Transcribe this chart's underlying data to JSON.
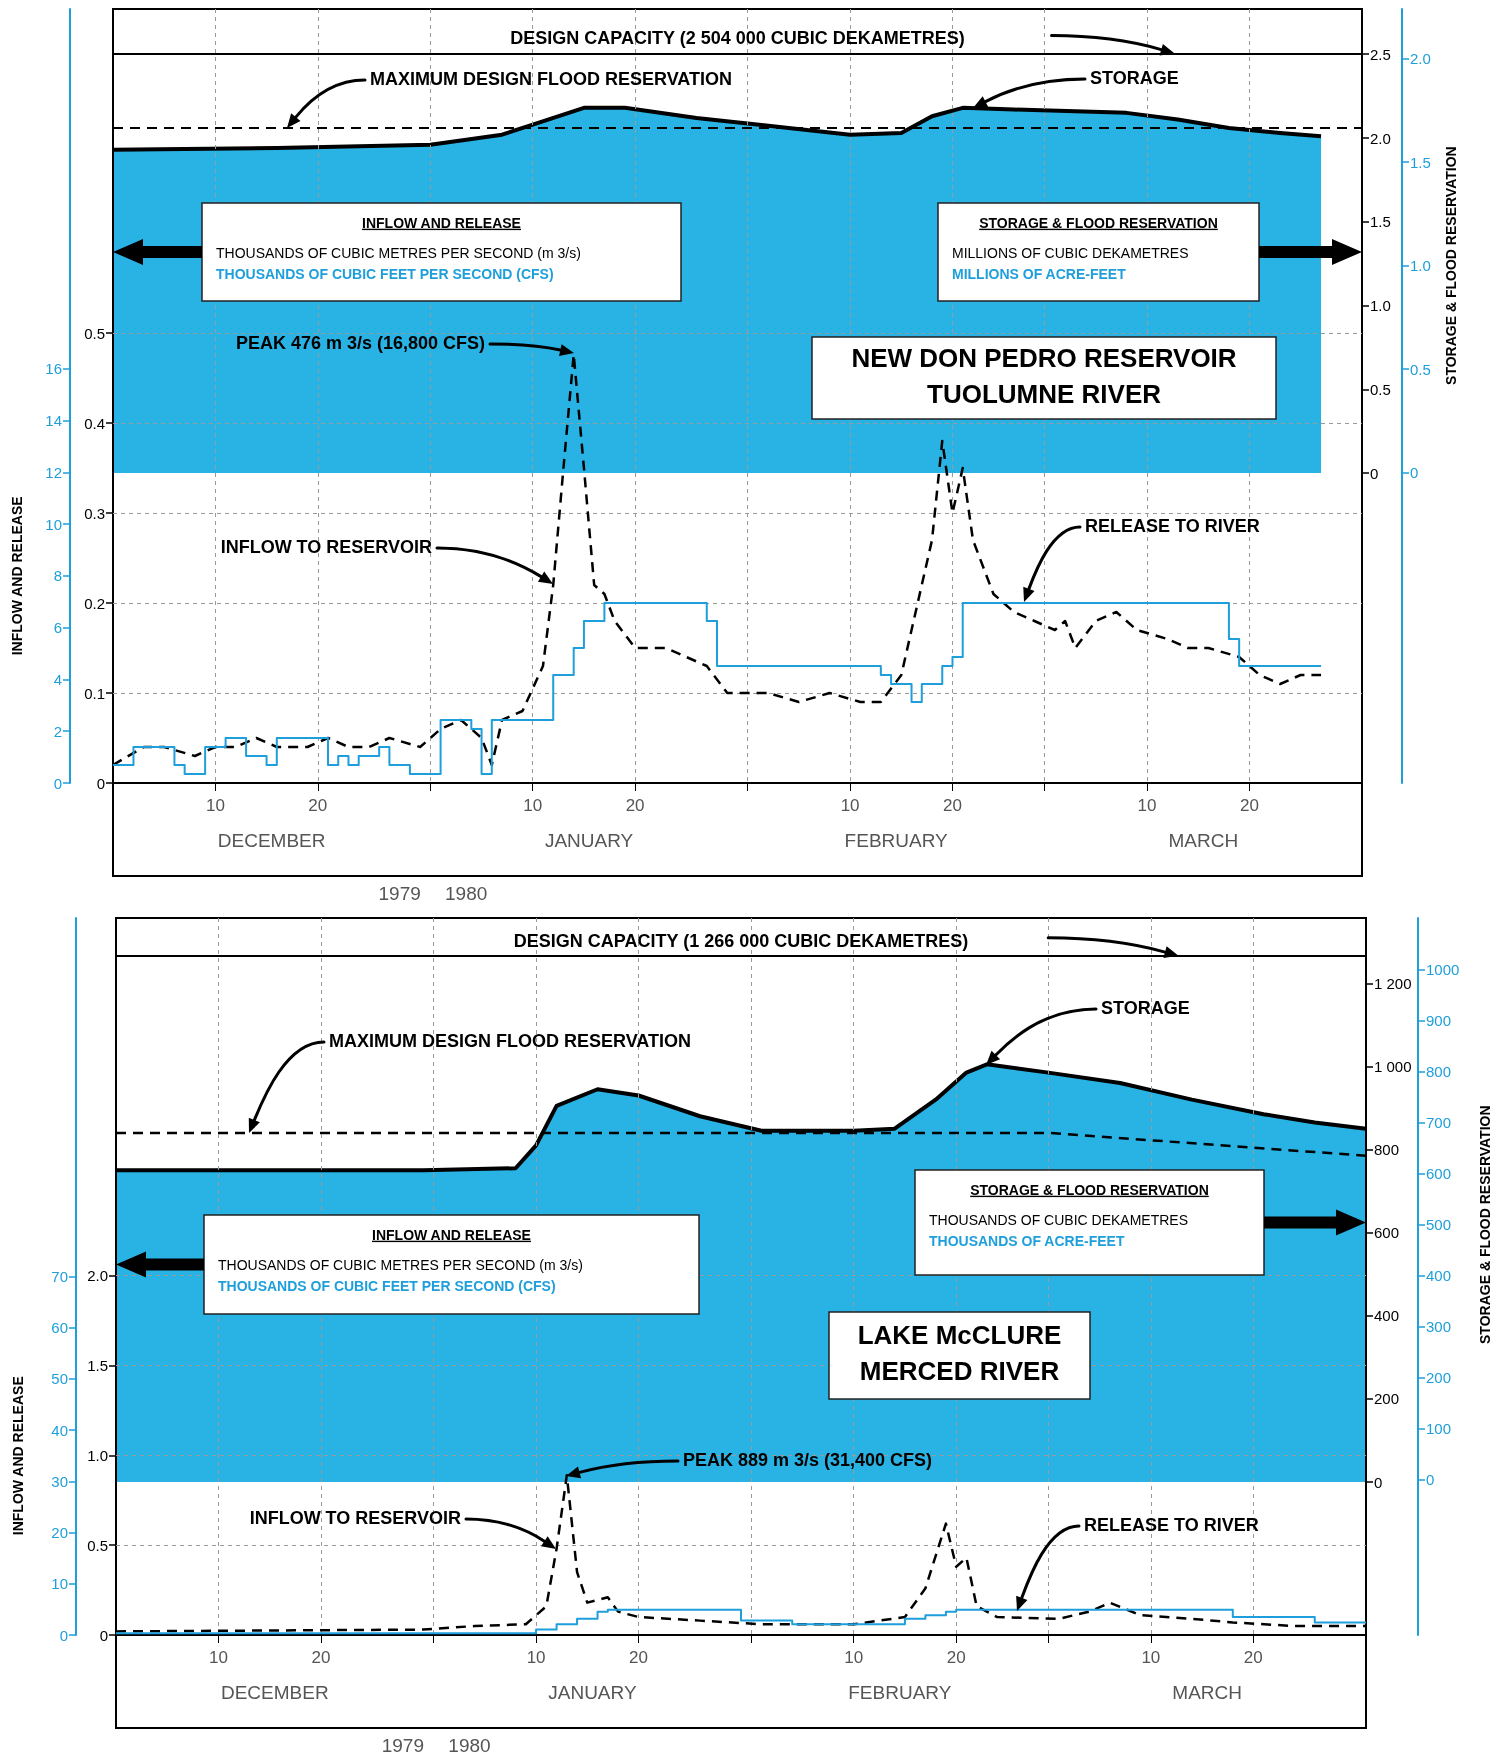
{
  "chart_data": [
    {
      "type": "area",
      "title": "NEW DON PEDRO RESERVOIR\nTUOLUMNE RIVER",
      "y2label": "STORAGE & FLOOD RESERVATION",
      "xlim": [
        "1979-11-30",
        "1980-03-31"
      ],
      "tick_labels": "y",
      "ylim": [
        -1.85,
        2.77
      ],
      "yticks": [
        0,
        0.5,
        {
          "value": 1,
          "label": "1.0"
        },
        1.5,
        {
          "value": 2,
          "label": "2.0"
        },
        2.5
      ],
      "y2lim": [
        -1.5,
        2.24
      ],
      "y2ticks": [
        0,
        0.5,
        {
          "value": 1,
          "label": "1.0"
        },
        1.5,
        {
          "value": 2,
          "label": "2.0"
        }
      ],
      "marker": "none",
      "series": [
        {
          "color": "#29b3e4",
          "x": [
            "1979-11-30",
            "1979-12-16",
            "1979-12-31",
            "1980-01-07",
            "1980-01-10",
            "1980-01-15",
            "1980-01-19",
            "1980-01-26",
            "1980-02-04",
            "1980-02-10",
            "1980-02-15",
            "1980-02-18",
            "1980-02-21",
            "1980-02-26",
            "1980-03-08",
            "1980-03-13",
            "1980-03-18",
            "1980-03-23",
            "1980-03-27"
          ],
          "values": [
            1.93,
            1.94,
            1.96,
            2.02,
            2.08,
            2.18,
            2.18,
            2.12,
            2.06,
            2.02,
            2.03,
            2.13,
            2.18,
            2.17,
            2.15,
            2.11,
            2.06,
            2.03,
            2.01
          ]
        }
      ],
      "ref_lines": [
        {
          "axis": "y",
          "value": 2.504,
          "label": "DESIGN CAPACITY  (2 504 000 CUBIC DEKAMETRES)",
          "color": "#000000",
          "line_style": "solid"
        },
        {
          "axis": "y",
          "value": 2.06,
          "color": "#000000",
          "line_style": "dashed"
        }
      ],
      "annotations": [
        "MAXIMUM DESIGN FLOOD RESERVATION",
        "STORAGE",
        "STORAGE & FLOOD RESERVATION\nMILLIONS OF CUBIC DEKAMETRES\nMILLIONS OF ACRE-FEET"
      ]
    },
    {
      "type": "line",
      "y2label": "INFLOW AND RELEASE",
      "xlim": [
        "1979-11-30",
        "1980-03-31"
      ],
      "xticks": [
        {
          "value": "1979-12-10",
          "label": "10"
        },
        {
          "value": "1979-12-20",
          "label": "20"
        },
        {
          "value": "1979-12-31",
          "label": null
        },
        {
          "value": "1980-01-10",
          "label": "10"
        },
        {
          "value": "1980-01-20",
          "label": "20"
        },
        {
          "value": "1980-01-31",
          "label": null
        },
        {
          "value": "1980-02-10",
          "label": "10"
        },
        {
          "value": "1980-02-20",
          "label": "20"
        },
        {
          "value": "1980-02-29",
          "label": null
        },
        {
          "value": "1980-03-10",
          "label": "10"
        },
        {
          "value": "1980-03-20",
          "label": "20"
        }
      ],
      "ylim": [
        0,
        0.86
      ],
      "yticks": [
        0,
        0.1,
        0.2,
        0.3,
        0.4,
        0.5
      ],
      "y2lim": [
        0,
        29.9
      ],
      "y2ticks": [
        0,
        2,
        4,
        6,
        8,
        10,
        12,
        14,
        16
      ],
      "grid": true,
      "marker": "none",
      "series": [
        {
          "color": "#000000",
          "line_style": "dashed",
          "x": [
            "1979-11-30",
            "1979-12-03",
            "1979-12-05",
            "1979-12-08",
            "1979-12-10",
            "1979-12-12",
            "1979-12-14",
            "1979-12-16",
            "1979-12-19",
            "1979-12-21",
            "1979-12-23",
            "1979-12-25",
            "1979-12-27",
            "1979-12-30",
            "1980-01-01",
            "1980-01-03",
            "1980-01-05",
            "1980-01-06",
            "1980-01-07",
            "1980-01-09",
            "1980-01-11",
            "1980-01-12",
            "1980-01-13",
            "1980-01-14",
            "1980-01-15",
            "1980-01-16",
            "1980-01-17",
            "1980-01-18",
            "1980-01-20",
            "1980-01-23",
            "1980-01-25",
            "1980-01-27",
            "1980-01-29",
            "1980-02-02",
            "1980-02-05",
            "1980-02-08",
            "1980-02-11",
            "1980-02-13",
            "1980-02-15",
            "1980-02-16",
            "1980-02-18",
            "1980-02-19",
            "1980-02-20",
            "1980-02-21",
            "1980-02-22",
            "1980-02-24",
            "1980-02-26",
            "1980-02-28",
            "1980-03-01",
            "1980-03-02",
            "1980-03-03",
            "1980-03-05",
            "1980-03-07",
            "1980-03-09",
            "1980-03-12",
            "1980-03-14",
            "1980-03-16",
            "1980-03-19",
            "1980-03-21",
            "1980-03-23",
            "1980-03-25",
            "1980-03-27"
          ],
          "values": [
            0.02,
            0.04,
            0.04,
            0.03,
            0.04,
            0.04,
            0.05,
            0.04,
            0.04,
            0.05,
            0.04,
            0.04,
            0.05,
            0.04,
            0.06,
            0.07,
            0.05,
            0.02,
            0.07,
            0.08,
            0.13,
            0.22,
            0.35,
            0.476,
            0.35,
            0.22,
            0.21,
            0.18,
            0.15,
            0.15,
            0.14,
            0.13,
            0.1,
            0.1,
            0.09,
            0.1,
            0.09,
            0.09,
            0.12,
            0.17,
            0.27,
            0.38,
            0.3,
            0.35,
            0.27,
            0.21,
            0.19,
            0.18,
            0.17,
            0.18,
            0.15,
            0.18,
            0.19,
            0.17,
            0.16,
            0.15,
            0.15,
            0.14,
            0.12,
            0.11,
            0.12,
            0.12
          ]
        },
        {
          "type": "step",
          "color": "#1e9fdb",
          "x": [
            "1979-11-30",
            "1979-12-02",
            "1979-12-06",
            "1979-12-07",
            "1979-12-09",
            "1979-12-11",
            "1979-12-13",
            "1979-12-15",
            "1979-12-16",
            "1979-12-21",
            "1979-12-22",
            "1979-12-23",
            "1979-12-24",
            "1979-12-26",
            "1979-12-27",
            "1979-12-29",
            "1980-01-01",
            "1980-01-04",
            "1980-01-05",
            "1980-01-06",
            "1980-01-12",
            "1980-01-14",
            "1980-01-15",
            "1980-01-17",
            "1980-01-27",
            "1980-01-28",
            "1980-02-13",
            "1980-02-14",
            "1980-02-16",
            "1980-02-17",
            "1980-02-19",
            "1980-02-20",
            "1980-02-21",
            "1980-03-18",
            "1980-03-19",
            "1980-03-27"
          ],
          "values": [
            0.02,
            0.04,
            0.02,
            0.01,
            0.04,
            0.05,
            0.03,
            0.02,
            0.05,
            0.02,
            0.03,
            0.02,
            0.03,
            0.04,
            0.02,
            0.01,
            0.07,
            0.06,
            0.01,
            0.07,
            0.12,
            0.15,
            0.18,
            0.2,
            0.18,
            0.13,
            0.12,
            0.11,
            0.09,
            0.11,
            0.13,
            0.14,
            0.2,
            0.16,
            0.13,
            0.13
          ]
        }
      ],
      "annotations": [
        "PEAK 476 m 3/s (16,800 CFS)",
        "INFLOW TO RESERVOIR",
        "RELEASE TO RIVER",
        "INFLOW AND RELEASE\nTHOUSANDS OF CUBIC METRES PER SECOND (m 3/s)\nTHOUSANDS OF CUBIC FEET PER SECOND (CFS)",
        "DECEMBER",
        "JANUARY",
        "FEBRUARY",
        "MARCH",
        "1979",
        "1980"
      ]
    },
    {
      "type": "area",
      "title": "LAKE McCLURE\nMERCED RIVER",
      "y2label": "STORAGE & FLOOD RESERVATION",
      "xlim": [
        "1979-11-30",
        "1980-03-31"
      ],
      "tick_labels": "y",
      "ylim": [
        -368,
        1357
      ],
      "yticks": [
        0,
        200,
        400,
        600,
        800,
        {
          "value": 1000,
          "label": "1 000"
        },
        {
          "value": 1200,
          "label": "1 200"
        }
      ],
      "y2lim": [
        -304,
        1101
      ],
      "y2ticks": [
        0,
        100,
        200,
        300,
        400,
        500,
        600,
        700,
        800,
        900,
        1000
      ],
      "marker": "none",
      "series": [
        {
          "color": "#29b3e4",
          "x": [
            "1979-11-30",
            "1979-12-30",
            "1980-01-08",
            "1980-01-10",
            "1980-01-12",
            "1980-01-16",
            "1980-01-20",
            "1980-01-26",
            "1980-02-01",
            "1980-02-10",
            "1980-02-14",
            "1980-02-18",
            "1980-02-21",
            "1980-02-23",
            "1980-02-29",
            "1980-03-07",
            "1980-03-14",
            "1980-03-21",
            "1980-03-26",
            "1980-03-31"
          ],
          "values": [
            750,
            750,
            755,
            810,
            905,
            945,
            930,
            880,
            845,
            845,
            850,
            920,
            985,
            1005,
            985,
            960,
            920,
            885,
            865,
            850
          ]
        },
        {
          "type": "line",
          "color": "#000000",
          "line_style": "dashed",
          "x": [
            "1979-11-30",
            "1980-02-29",
            "1980-03-31"
          ],
          "values": [
            840,
            840,
            785
          ]
        }
      ],
      "ref_lines": [
        {
          "axis": "y",
          "value": 1266,
          "label": "DESIGN CAPACITY (1 266 000 CUBIC DEKAMETRES)",
          "color": "#000000",
          "line_style": "solid"
        }
      ],
      "annotations": [
        "MAXIMUM DESIGN FLOOD RESERVATION",
        "STORAGE",
        "STORAGE & FLOOD RESERVATION\nTHOUSANDS OF CUBIC DEKAMETRES\nTHOUSANDS OF ACRE-FEET"
      ]
    },
    {
      "type": "line",
      "y2label": "INFLOW AND RELEASE",
      "xlim": [
        "1979-11-30",
        "1980-03-31"
      ],
      "xticks": [
        {
          "value": "1979-12-10",
          "label": "10"
        },
        {
          "value": "1979-12-20",
          "label": "20"
        },
        {
          "value": "1979-12-31",
          "label": null
        },
        {
          "value": "1980-01-10",
          "label": "10"
        },
        {
          "value": "1980-01-20",
          "label": "20"
        },
        {
          "value": "1980-01-31",
          "label": null
        },
        {
          "value": "1980-02-10",
          "label": "10"
        },
        {
          "value": "1980-02-20",
          "label": "20"
        },
        {
          "value": "1980-02-29",
          "label": null
        },
        {
          "value": "1980-03-10",
          "label": "10"
        },
        {
          "value": "1980-03-20",
          "label": "20"
        }
      ],
      "ylim": [
        0,
        3.99
      ],
      "yticks": [
        0,
        0.5,
        {
          "value": 1,
          "label": "1.0"
        },
        1.5,
        {
          "value": 2,
          "label": "2.0"
        }
      ],
      "y2lim": [
        0,
        140
      ],
      "y2ticks": [
        0,
        10,
        20,
        30,
        40,
        50,
        60,
        70
      ],
      "grid": true,
      "marker": "none",
      "series": [
        {
          "color": "#000000",
          "line_style": "dashed",
          "x": [
            "1979-11-30",
            "1979-12-30",
            "1980-01-04",
            "1980-01-09",
            "1980-01-11",
            "1980-01-12",
            "1980-01-13",
            "1980-01-14",
            "1980-01-15",
            "1980-01-17",
            "1980-01-18",
            "1980-01-20",
            "1980-01-26",
            "1980-02-01",
            "1980-02-10",
            "1980-02-15",
            "1980-02-17",
            "1980-02-19",
            "1980-02-20",
            "1980-02-21",
            "1980-02-22",
            "1980-02-24",
            "1980-03-01",
            "1980-03-04",
            "1980-03-06",
            "1980-03-09",
            "1980-03-14",
            "1980-03-18",
            "1980-03-24",
            "1980-03-31"
          ],
          "values": [
            0.02,
            0.03,
            0.05,
            0.06,
            0.16,
            0.48,
            0.889,
            0.35,
            0.18,
            0.21,
            0.13,
            0.1,
            0.08,
            0.06,
            0.06,
            0.1,
            0.26,
            0.62,
            0.38,
            0.43,
            0.16,
            0.1,
            0.09,
            0.13,
            0.18,
            0.11,
            0.09,
            0.07,
            0.05,
            0.05
          ]
        },
        {
          "type": "step",
          "color": "#1e9fdb",
          "x": [
            "1979-11-30",
            "1980-01-10",
            "1980-01-12",
            "1980-01-14",
            "1980-01-16",
            "1980-01-17",
            "1980-01-30",
            "1980-02-04",
            "1980-02-15",
            "1980-02-17",
            "1980-02-19",
            "1980-02-20",
            "1980-03-18",
            "1980-03-26",
            "1980-03-31"
          ],
          "values": [
            0.01,
            0.03,
            0.06,
            0.09,
            0.13,
            0.14,
            0.08,
            0.06,
            0.09,
            0.11,
            0.13,
            0.14,
            0.1,
            0.07,
            0.07
          ]
        }
      ],
      "annotations": [
        "PEAK 889 m 3/s (31,400 CFS)",
        "INFLOW TO RESERVOIR",
        "RELEASE TO RIVER",
        "INFLOW AND RELEASE\nTHOUSANDS OF CUBIC METRES PER SECOND (m 3/s)\nTHOUSANDS OF CUBIC FEET PER SECOND (CFS)",
        "DECEMBER",
        "JANUARY",
        "FEBRUARY",
        "MARCH",
        "1979",
        "1980"
      ]
    }
  ]
}
